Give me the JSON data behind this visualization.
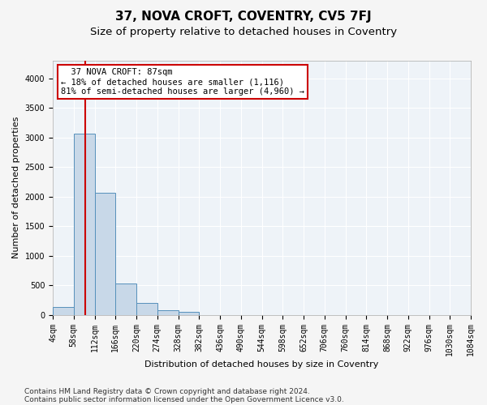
{
  "title": "37, NOVA CROFT, COVENTRY, CV5 7FJ",
  "subtitle": "Size of property relative to detached houses in Coventry",
  "xlabel": "Distribution of detached houses by size in Coventry",
  "ylabel": "Number of detached properties",
  "footnote1": "Contains HM Land Registry data © Crown copyright and database right 2024.",
  "footnote2": "Contains public sector information licensed under the Open Government Licence v3.0.",
  "bin_edges": [
    4,
    58,
    112,
    166,
    220,
    274,
    328,
    382,
    436,
    490,
    544,
    598,
    652,
    706,
    760,
    814,
    868,
    922,
    976,
    1030,
    1084
  ],
  "bar_heights": [
    130,
    3060,
    2070,
    530,
    200,
    80,
    55,
    0,
    0,
    0,
    0,
    0,
    0,
    0,
    0,
    0,
    0,
    0,
    0,
    0
  ],
  "bar_color": "#c8d8e8",
  "bar_edge_color": "#5590bb",
  "vline_x": 87,
  "vline_color": "#cc0000",
  "annotation_text": "  37 NOVA CROFT: 87sqm\n← 18% of detached houses are smaller (1,116)\n81% of semi-detached houses are larger (4,960) →",
  "annotation_box_color": "#ffffff",
  "annotation_box_edge": "#cc0000",
  "ylim": [
    0,
    4300
  ],
  "yticks": [
    0,
    500,
    1000,
    1500,
    2000,
    2500,
    3000,
    3500,
    4000
  ],
  "bg_color": "#eef3f8",
  "grid_color": "#ffffff",
  "title_fontsize": 11,
  "subtitle_fontsize": 9.5,
  "label_fontsize": 8,
  "tick_fontsize": 7,
  "annot_fontsize": 7.5,
  "footnote_fontsize": 6.5
}
